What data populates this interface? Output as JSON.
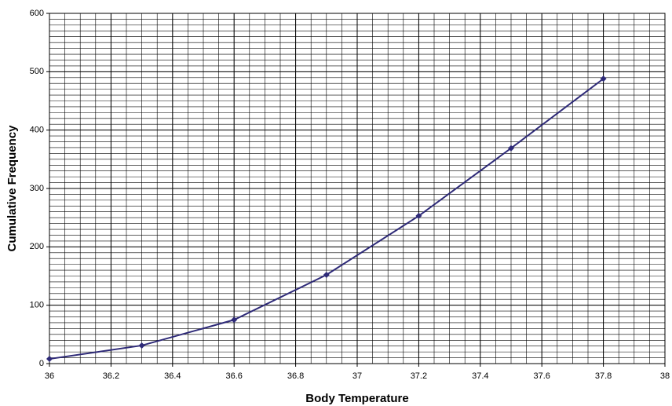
{
  "chart_data": {
    "type": "line",
    "xlabel": "Body Temperature",
    "ylabel": "Cumulative Frequency",
    "x": [
      36,
      36.3,
      36.6,
      36.9,
      37.2,
      37.5,
      37.8
    ],
    "values": [
      8,
      31,
      75,
      152,
      253,
      369,
      488
    ],
    "color": "#2e2a78",
    "xlim": [
      36,
      38
    ],
    "xticks": [
      36,
      36.2,
      36.4,
      36.6,
      36.8,
      37,
      37.2,
      37.4,
      37.6,
      37.8,
      38
    ],
    "ylim": [
      0,
      600
    ],
    "yticks": [
      0,
      100,
      200,
      300,
      400,
      500,
      600
    ],
    "grid": true,
    "minor_grid": {
      "x": 0.05,
      "y": 10
    }
  }
}
